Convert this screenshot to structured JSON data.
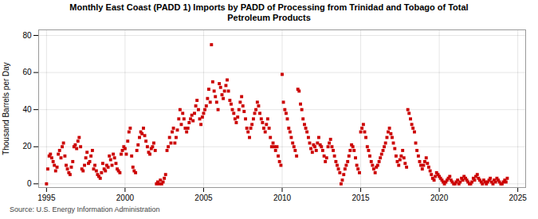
{
  "chart_data": {
    "type": "scatter",
    "title": "Monthly East Coast (PADD 1) Imports by PADD of Processing from Trinidad and Tobago of Total\nPetroleum Products",
    "ylabel": "Thousand Barrels per Day",
    "annotations": [
      "Source: U.S. Energy Information Administration"
    ],
    "color": "#cc0000",
    "marker": "square",
    "grid": true,
    "xlim": [
      1994.5,
      2025.5
    ],
    "ylim": [
      -2,
      83
    ],
    "xticks": [
      1995,
      2000,
      2005,
      2010,
      2015,
      2020,
      2025
    ],
    "yticks": [
      0,
      20,
      40,
      60,
      80
    ],
    "x": [
      1995.0,
      1995.08,
      1995.17,
      1995.25,
      1995.33,
      1995.42,
      1995.5,
      1995.58,
      1995.67,
      1995.75,
      1995.83,
      1995.92,
      1996.0,
      1996.08,
      1996.17,
      1996.25,
      1996.33,
      1996.42,
      1996.5,
      1996.58,
      1996.67,
      1996.75,
      1996.83,
      1996.92,
      1997.0,
      1997.08,
      1997.17,
      1997.25,
      1997.33,
      1997.42,
      1997.5,
      1997.58,
      1997.67,
      1997.75,
      1997.83,
      1997.92,
      1998.0,
      1998.08,
      1998.17,
      1998.25,
      1998.33,
      1998.42,
      1998.5,
      1998.58,
      1998.67,
      1998.75,
      1998.83,
      1998.92,
      1999.0,
      1999.08,
      1999.17,
      1999.25,
      1999.33,
      1999.42,
      1999.5,
      1999.58,
      1999.67,
      1999.75,
      1999.83,
      1999.92,
      2000.0,
      2000.08,
      2000.17,
      2000.25,
      2000.33,
      2000.42,
      2000.5,
      2000.58,
      2000.67,
      2000.75,
      2000.83,
      2000.92,
      2001.0,
      2001.08,
      2001.17,
      2001.25,
      2001.33,
      2001.42,
      2001.5,
      2001.58,
      2001.67,
      2001.75,
      2001.83,
      2001.92,
      2002.0,
      2002.08,
      2002.17,
      2002.25,
      2002.33,
      2002.42,
      2002.5,
      2002.58,
      2002.67,
      2002.75,
      2002.83,
      2002.92,
      2003.0,
      2003.08,
      2003.17,
      2003.25,
      2003.33,
      2003.42,
      2003.5,
      2003.58,
      2003.67,
      2003.75,
      2003.83,
      2003.92,
      2004.0,
      2004.08,
      2004.17,
      2004.25,
      2004.33,
      2004.42,
      2004.5,
      2004.58,
      2004.67,
      2004.75,
      2004.83,
      2004.92,
      2005.0,
      2005.08,
      2005.17,
      2005.25,
      2005.33,
      2005.42,
      2005.5,
      2005.58,
      2005.67,
      2005.75,
      2005.83,
      2005.92,
      2006.0,
      2006.08,
      2006.17,
      2006.25,
      2006.33,
      2006.42,
      2006.5,
      2006.58,
      2006.67,
      2006.75,
      2006.83,
      2006.92,
      2007.0,
      2007.08,
      2007.17,
      2007.25,
      2007.33,
      2007.42,
      2007.5,
      2007.58,
      2007.67,
      2007.75,
      2007.83,
      2007.92,
      2008.0,
      2008.08,
      2008.17,
      2008.25,
      2008.33,
      2008.42,
      2008.5,
      2008.58,
      2008.67,
      2008.75,
      2008.83,
      2008.92,
      2009.0,
      2009.08,
      2009.17,
      2009.25,
      2009.33,
      2009.42,
      2009.5,
      2009.58,
      2009.67,
      2009.75,
      2009.83,
      2009.92,
      2010.0,
      2010.08,
      2010.17,
      2010.25,
      2010.33,
      2010.42,
      2010.5,
      2010.58,
      2010.67,
      2010.75,
      2010.83,
      2010.92,
      2011.0,
      2011.08,
      2011.17,
      2011.25,
      2011.33,
      2011.42,
      2011.5,
      2011.58,
      2011.67,
      2011.75,
      2011.83,
      2011.92,
      2012.0,
      2012.08,
      2012.17,
      2012.25,
      2012.33,
      2012.42,
      2012.5,
      2012.58,
      2012.67,
      2012.75,
      2012.83,
      2012.92,
      2013.0,
      2013.08,
      2013.17,
      2013.25,
      2013.33,
      2013.42,
      2013.5,
      2013.58,
      2013.67,
      2013.75,
      2013.83,
      2013.92,
      2014.0,
      2014.08,
      2014.17,
      2014.25,
      2014.33,
      2014.42,
      2014.5,
      2014.58,
      2014.67,
      2014.75,
      2014.83,
      2014.92,
      2015.0,
      2015.08,
      2015.17,
      2015.25,
      2015.33,
      2015.42,
      2015.5,
      2015.58,
      2015.67,
      2015.75,
      2015.83,
      2015.92,
      2016.0,
      2016.08,
      2016.17,
      2016.25,
      2016.33,
      2016.42,
      2016.5,
      2016.58,
      2016.67,
      2016.75,
      2016.83,
      2016.92,
      2017.0,
      2017.08,
      2017.17,
      2017.25,
      2017.33,
      2017.42,
      2017.5,
      2017.58,
      2017.67,
      2017.75,
      2017.83,
      2017.92,
      2018.0,
      2018.08,
      2018.17,
      2018.25,
      2018.33,
      2018.42,
      2018.5,
      2018.58,
      2018.67,
      2018.75,
      2018.83,
      2018.92,
      2019.0,
      2019.08,
      2019.17,
      2019.25,
      2019.33,
      2019.42,
      2019.5,
      2019.58,
      2019.67,
      2019.75,
      2019.83,
      2019.92,
      2020.0,
      2020.08,
      2020.17,
      2020.25,
      2020.33,
      2020.42,
      2020.5,
      2020.58,
      2020.67,
      2020.75,
      2020.83,
      2020.92,
      2021.0,
      2021.08,
      2021.17,
      2021.25,
      2021.33,
      2021.42,
      2021.5,
      2021.58,
      2021.67,
      2021.75,
      2021.83,
      2021.92,
      2022.0,
      2022.08,
      2022.17,
      2022.25,
      2022.33,
      2022.42,
      2022.5,
      2022.58,
      2022.67,
      2022.75,
      2022.83,
      2022.92,
      2023.0,
      2023.08,
      2023.17,
      2023.25,
      2023.33,
      2023.42,
      2023.5,
      2023.58,
      2023.67,
      2023.75,
      2023.83,
      2023.92,
      2024.0,
      2024.08,
      2024.17,
      2024.25,
      2024.33
    ],
    "values": [
      0,
      8,
      15,
      16,
      14,
      12,
      10,
      7,
      9,
      16,
      18,
      14,
      20,
      22,
      15,
      10,
      8,
      6,
      5,
      9,
      12,
      20,
      21,
      19,
      23,
      25,
      20,
      8,
      7,
      10,
      14,
      17,
      11,
      12,
      15,
      18,
      8,
      10,
      7,
      5,
      4,
      3,
      6,
      11,
      8,
      7,
      10,
      9,
      15,
      13,
      10,
      16,
      14,
      11,
      8,
      7,
      6,
      16,
      18,
      20,
      19,
      16,
      23,
      28,
      30,
      15,
      9,
      7,
      6,
      18,
      21,
      25,
      28,
      27,
      30,
      26,
      23,
      20,
      17,
      16,
      19,
      20,
      22,
      18,
      0,
      1,
      0,
      2,
      0,
      1,
      3,
      5,
      18,
      20,
      25,
      22,
      28,
      30,
      22,
      25,
      29,
      35,
      40,
      32,
      38,
      35,
      30,
      28,
      30,
      33,
      35,
      37,
      34,
      38,
      42,
      45,
      40,
      35,
      32,
      36,
      38,
      40,
      42,
      46,
      51,
      44,
      75,
      55,
      50,
      47,
      44,
      40,
      54,
      52,
      48,
      46,
      50,
      53,
      56,
      50,
      45,
      43,
      40,
      38,
      35,
      33,
      36,
      40,
      44,
      47,
      42,
      39,
      35,
      30,
      28,
      25,
      30,
      32,
      35,
      38,
      40,
      44,
      42,
      38,
      35,
      33,
      30,
      28,
      32,
      35,
      30,
      25,
      20,
      22,
      20,
      18,
      20,
      15,
      12,
      10,
      59,
      44,
      40,
      38,
      35,
      30,
      28,
      25,
      22,
      20,
      18,
      15,
      51,
      50,
      43,
      40,
      35,
      32,
      30,
      28,
      25,
      22,
      19,
      17,
      21,
      20,
      18,
      22,
      25,
      21,
      20,
      18,
      15,
      12,
      14,
      20,
      22,
      24,
      20,
      18,
      15,
      12,
      10,
      8,
      6,
      0,
      2,
      5,
      8,
      10,
      12,
      15,
      18,
      21,
      20,
      18,
      14,
      10,
      8,
      6,
      28,
      30,
      32,
      28,
      25,
      20,
      18,
      15,
      12,
      10,
      8,
      6,
      9,
      10,
      12,
      14,
      16,
      18,
      20,
      22,
      25,
      28,
      30,
      27,
      25,
      22,
      19,
      15,
      12,
      10,
      13,
      15,
      18,
      14,
      11,
      9,
      40,
      38,
      35,
      32,
      30,
      28,
      22,
      18,
      15,
      12,
      10,
      8,
      10,
      12,
      14,
      11,
      9,
      7,
      5,
      3,
      2,
      4,
      6,
      5,
      4,
      3,
      2,
      1,
      0,
      1,
      2,
      3,
      4,
      2,
      1,
      0,
      0,
      1,
      2,
      0,
      1,
      3,
      2,
      4,
      3,
      2,
      1,
      0,
      0,
      1,
      3,
      2,
      4,
      5,
      3,
      2,
      1,
      0,
      2,
      1,
      0,
      1,
      2,
      3,
      1,
      0,
      2,
      1,
      3,
      2,
      1,
      0,
      0,
      1,
      2,
      1,
      3
    ]
  }
}
